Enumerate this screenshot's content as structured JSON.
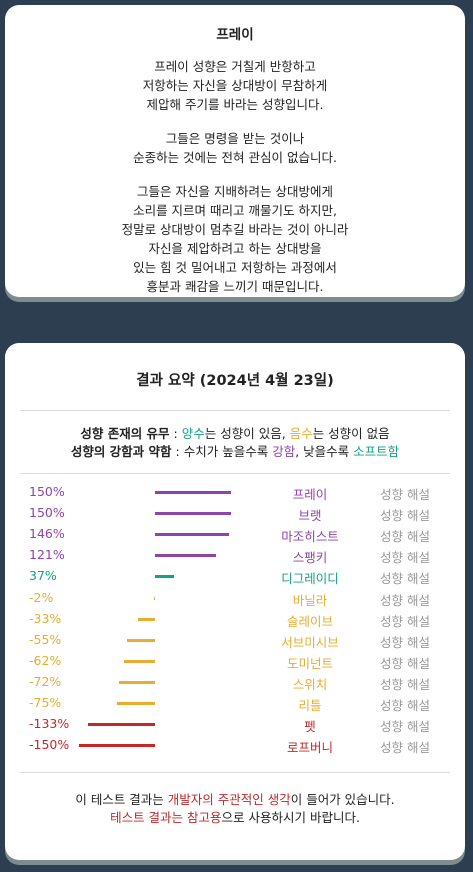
{
  "profile": {
    "title": "프레이",
    "paragraphs": [
      [
        "프레이 성향은 거칠게 반항하고",
        "저항하는 자신을 상대방이 무참하게",
        "제압해 주기를 바라는 성향입니다."
      ],
      [
        "그들은 명령을 받는 것이나",
        "순종하는 것에는 전혀 관심이 없습니다."
      ],
      [
        "그들은 자신을 지배하려는 상대방에게",
        "소리를 지르며 때리고 깨물기도 하지만,",
        "정말로 상대방이 멈추길 바라는 것이 아니라",
        "자신을 제압하려고 하는 상대방을",
        "있는 힘 것 밀어내고 저항하는 과정에서",
        "흥분과 쾌감을 느끼기 때문입니다."
      ]
    ]
  },
  "summary": {
    "title": "결과 요약 (2024년 4월 23일)",
    "legend": [
      [
        "성향 존재의 유무",
        ":",
        "양수",
        "는 성향이 있음,",
        "음수",
        "는 성향이 없음"
      ],
      [
        "성향의 강함과 약함",
        ": 수치가 높을수록",
        "강함",
        ", 낮을수록",
        "소프트함"
      ]
    ],
    "rows": [
      {
        "value": 150,
        "value_label": "150%",
        "name": "프레이",
        "color": "#8e44ad",
        "link": "성향 해설"
      },
      {
        "value": 150,
        "value_label": "150%",
        "name": "브랫",
        "color": "#8e44ad",
        "link": "성향 해설"
      },
      {
        "value": 146,
        "value_label": "146%",
        "name": "마조히스트",
        "color": "#8e44ad",
        "link": "성향 해설"
      },
      {
        "value": 121,
        "value_label": "121%",
        "name": "스팽키",
        "color": "#8e44ad",
        "link": "성향 해설"
      },
      {
        "value": 37,
        "value_label": "37%",
        "name": "디그레이디",
        "color": "#16a085",
        "link": "성향 해설"
      },
      {
        "value": -2,
        "value_label": "-2%",
        "name": "바닐라",
        "color": "#e9ad2f",
        "link": "성향 해설"
      },
      {
        "value": -33,
        "value_label": "-33%",
        "name": "슬레이브",
        "color": "#e9ad2f",
        "link": "성향 해설"
      },
      {
        "value": -55,
        "value_label": "-55%",
        "name": "서브미시브",
        "color": "#e9ad2f",
        "link": "성향 해설"
      },
      {
        "value": -62,
        "value_label": "-62%",
        "name": "도미넌트",
        "color": "#e9ad2f",
        "link": "성향 해설"
      },
      {
        "value": -72,
        "value_label": "-72%",
        "name": "스위치",
        "color": "#e9ad2f",
        "link": "성향 해설"
      },
      {
        "value": -75,
        "value_label": "-75%",
        "name": "리틀",
        "color": "#e9ad2f",
        "link": "성향 해설"
      },
      {
        "value": -133,
        "value_label": "-133%",
        "name": "펫",
        "color": "#c62828",
        "link": "성향 해설"
      },
      {
        "value": -150,
        "value_label": "-150%",
        "name": "로프버니",
        "color": "#c62828",
        "link": "성향 해설"
      }
    ],
    "footer": [
      [
        "이 테스트 결과는",
        "개발자의 주관적인 생각",
        "이 들어가 있습니다."
      ],
      [
        "테스트 결과는 참고용",
        "으로 사용하시기 바랍니다."
      ]
    ]
  }
}
